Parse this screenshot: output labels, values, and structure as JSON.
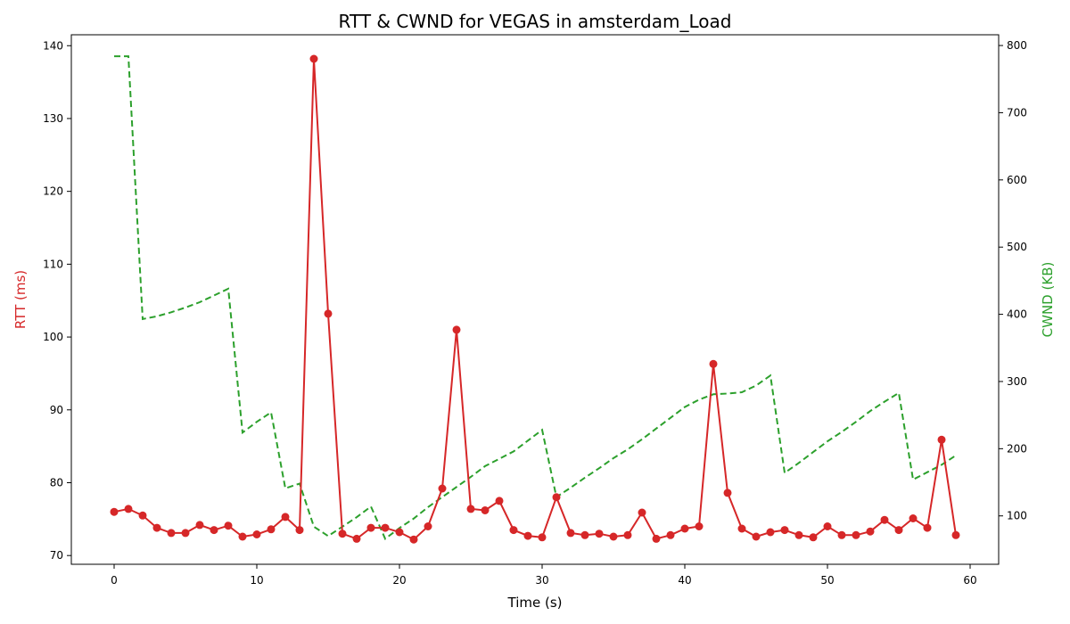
{
  "chart_data": {
    "type": "line",
    "title": "RTT & CWND for VEGAS in amsterdam_Load",
    "xlabel": "Time (s)",
    "ylabel_left": "RTT (ms)",
    "ylabel_right": "CWND (KB)",
    "xlim": [
      -3,
      62
    ],
    "ylim_left": [
      68.8,
      141.5
    ],
    "ylim_right": [
      28,
      816
    ],
    "x_ticks": [
      0,
      10,
      20,
      30,
      40,
      50,
      60
    ],
    "y_left_ticks": [
      70,
      80,
      90,
      100,
      110,
      120,
      130,
      140
    ],
    "y_right_ticks": [
      100,
      200,
      300,
      400,
      500,
      600,
      700,
      800
    ],
    "grid": false,
    "legend": "none",
    "colors": {
      "rtt": "#d62728",
      "cwnd": "#2ca02c"
    },
    "x": [
      0,
      1,
      2,
      3,
      4,
      5,
      6,
      7,
      8,
      9,
      10,
      11,
      12,
      13,
      14,
      15,
      16,
      17,
      18,
      19,
      20,
      21,
      22,
      23,
      24,
      25,
      26,
      27,
      28,
      29,
      30,
      31,
      32,
      33,
      34,
      35,
      36,
      37,
      38,
      39,
      40,
      41,
      42,
      43,
      44,
      45,
      46,
      47,
      48,
      49,
      50,
      51,
      52,
      53,
      54,
      55,
      56,
      57,
      58,
      59
    ],
    "series": [
      {
        "axis": "left",
        "style": "solid-markers",
        "values": [
          76.0,
          76.4,
          75.5,
          73.8,
          73.1,
          73.1,
          74.2,
          73.5,
          74.1,
          72.6,
          72.9,
          73.6,
          75.3,
          73.5,
          138.2,
          103.2,
          73.0,
          72.3,
          73.8,
          73.8,
          73.2,
          72.2,
          74.0,
          79.2,
          101.0,
          76.4,
          76.2,
          77.5,
          73.5,
          72.7,
          72.5,
          78.0,
          73.1,
          72.8,
          73.0,
          72.6,
          72.8,
          75.9,
          72.3,
          72.8,
          73.7,
          74.0,
          96.3,
          78.6,
          73.7,
          72.6,
          73.2,
          73.5,
          72.8,
          72.5,
          74.0,
          72.8,
          72.8,
          73.3,
          74.9,
          73.5,
          75.1,
          73.8,
          85.9,
          72.8
        ]
      },
      {
        "axis": "right",
        "style": "dashed",
        "values": [
          784,
          784,
          393,
          397,
          403,
          410,
          418,
          428,
          438,
          224,
          240,
          254,
          141,
          148,
          84,
          70,
          84,
          98,
          114,
          66,
          82,
          96,
          113,
          128,
          143,
          158,
          174,
          185,
          196,
          212,
          228,
          128,
          142,
          157,
          171,
          186,
          199,
          214,
          230,
          246,
          262,
          273,
          281,
          282,
          284,
          294,
          309,
          164,
          179,
          195,
          211,
          225,
          240,
          256,
          270,
          283,
          154,
          165,
          176,
          190
        ]
      }
    ]
  }
}
